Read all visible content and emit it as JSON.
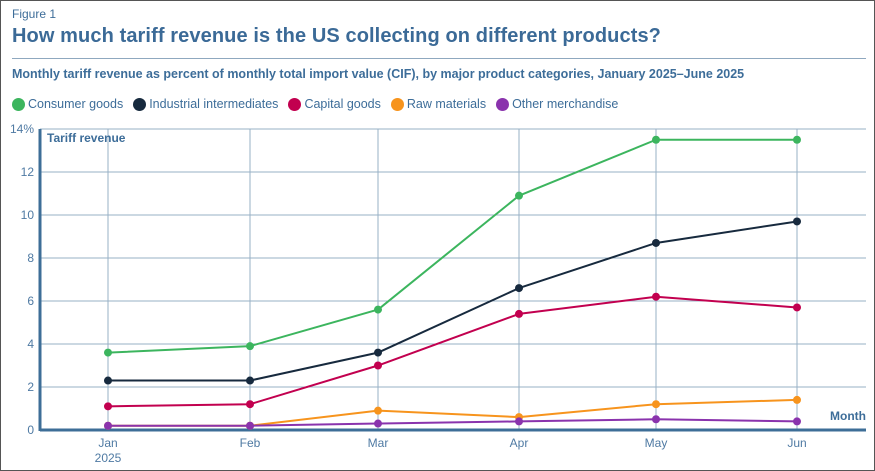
{
  "figure_label": "Figure 1",
  "title": "How much tariff revenue is the US collecting on different products?",
  "subtitle": "Monthly tariff revenue as percent of monthly total import value (CIF), by major product categories, January 2025–June 2025",
  "chart_data": {
    "type": "line",
    "title": "How much tariff revenue is the US collecting on different products?",
    "subtitle": "Monthly tariff revenue as percent of monthly total import value (CIF), by major product categories, January 2025–June 2025",
    "xlabel": "Month",
    "ylabel": "Tariff revenue",
    "x": [
      "Jan",
      "Feb",
      "Mar",
      "Apr",
      "May",
      "Jun"
    ],
    "x_sublabels": [
      "2025",
      "",
      "",
      "",
      "",
      ""
    ],
    "ylim": [
      0,
      14
    ],
    "yticks": [
      0,
      2,
      4,
      6,
      8,
      10,
      12,
      14
    ],
    "ytick_labels": [
      "0",
      "2",
      "4",
      "6",
      "8",
      "10",
      "12",
      "14%"
    ],
    "grid": true,
    "legend_position": "top-left",
    "series": [
      {
        "name": "Consumer goods",
        "color": "#3cb55e",
        "values": [
          3.6,
          3.9,
          5.6,
          10.9,
          13.5,
          13.5
        ]
      },
      {
        "name": "Industrial intermediates",
        "color": "#172a3e",
        "values": [
          2.3,
          2.3,
          3.6,
          6.6,
          8.7,
          9.7
        ]
      },
      {
        "name": "Capital goods",
        "color": "#c2004f",
        "values": [
          1.1,
          1.2,
          3.0,
          5.4,
          6.2,
          5.7
        ]
      },
      {
        "name": "Raw materials",
        "color": "#f7941d",
        "values": [
          0.2,
          0.2,
          0.9,
          0.6,
          1.2,
          1.4
        ]
      },
      {
        "name": "Other merchandise",
        "color": "#8a33ad",
        "values": [
          0.2,
          0.2,
          0.3,
          0.4,
          0.5,
          0.4
        ]
      }
    ]
  },
  "colors": {
    "title": "#3b6a97",
    "axis": "#3d6e97",
    "grid": "#97b0c6"
  }
}
